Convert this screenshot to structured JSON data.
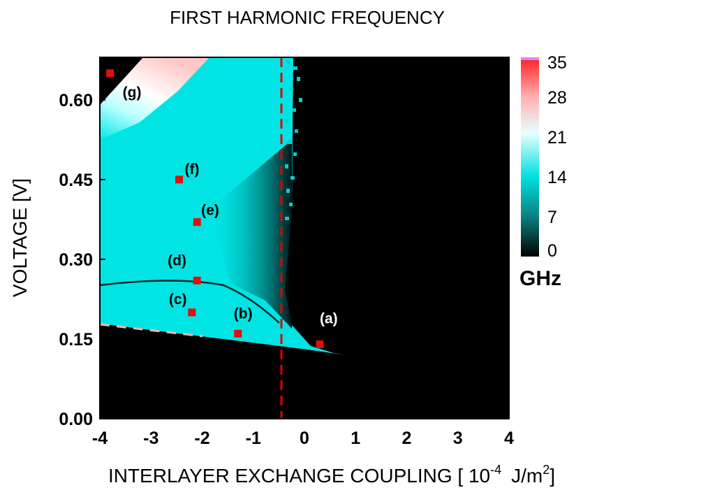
{
  "chart_data": {
    "type": "heatmap",
    "title": "FIRST HARMONIC FREQUENCY",
    "xlabel_main": "INTERLAYER EXCHANGE COUPLING [ 10",
    "xlabel_exp1": "-4",
    "xlabel_unit": "J/m",
    "xlabel_exp2": "2",
    "xlabel_close": "]",
    "ylabel": "VOLTAGE [V]",
    "xlim": [
      -4,
      4
    ],
    "ylim": [
      0,
      0.68
    ],
    "xticks": [
      "-4",
      "-3",
      "-2",
      "-1",
      "0",
      "1",
      "2",
      "3",
      "4"
    ],
    "xtick_values": [
      -4,
      -3,
      -2,
      -1,
      0,
      1,
      2,
      3,
      4
    ],
    "yticks": [
      "0.00",
      "0.15",
      "0.30",
      "0.45",
      "0.60"
    ],
    "ytick_values": [
      0.0,
      0.15,
      0.3,
      0.45,
      0.6
    ],
    "colorbar": {
      "label": "GHz",
      "range": [
        0,
        35
      ],
      "ticks": [
        "0",
        "7",
        "14",
        "21",
        "28",
        "35"
      ],
      "tick_values": [
        0,
        7,
        14,
        21,
        28,
        35
      ],
      "colors": [
        "#000000",
        "#0d8080",
        "#00e0e0",
        "#e8ffff",
        "#ffb0b0",
        "#ff2020"
      ]
    },
    "dashed_line": {
      "x": -0.45,
      "color": "#e00000"
    },
    "points": [
      {
        "label": "(a)",
        "x": 0.3,
        "y": 0.14,
        "label_color": "#ffffff"
      },
      {
        "label": "(b)",
        "x": -1.3,
        "y": 0.16,
        "label_color": "#000000"
      },
      {
        "label": "(c)",
        "x": -2.2,
        "y": 0.2,
        "label_color": "#000000"
      },
      {
        "label": "(d)",
        "x": -2.1,
        "y": 0.26,
        "label_color": "#000000"
      },
      {
        "label": "(e)",
        "x": -2.1,
        "y": 0.37,
        "label_color": "#000000"
      },
      {
        "label": "(f)",
        "x": -2.45,
        "y": 0.45,
        "label_color": "#000000"
      },
      {
        "label": "(g)",
        "x": -3.8,
        "y": 0.65,
        "label_color": "#000000"
      }
    ]
  }
}
